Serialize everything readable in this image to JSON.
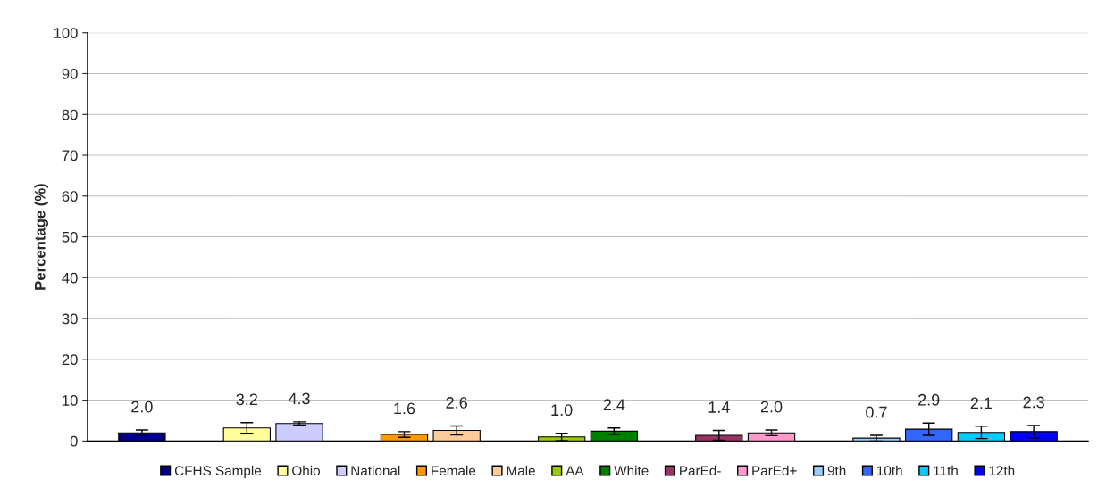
{
  "chart_data": {
    "type": "bar",
    "ylabel": "Percentage (%)",
    "ylim": [
      0,
      100
    ],
    "yticks": [
      0,
      10,
      20,
      30,
      40,
      50,
      60,
      70,
      80,
      90,
      100
    ],
    "grid": "y",
    "legend": "bottom",
    "categories": [
      null,
      null,
      null,
      null,
      null,
      null,
      null,
      null,
      null,
      null,
      null,
      null,
      null,
      null,
      null,
      null,
      null,
      null
    ],
    "series": [
      {
        "name": "CFHS Sample",
        "color": "#000080",
        "values": [
          2.0,
          null,
          null,
          null,
          null,
          null,
          null,
          null,
          null,
          null,
          null,
          null,
          null,
          null,
          null,
          null,
          null,
          null
        ],
        "errors": [
          0.7,
          null,
          null,
          null,
          null,
          null,
          null,
          null,
          null,
          null,
          null,
          null,
          null,
          null,
          null,
          null,
          null,
          null
        ],
        "value_labels": [
          "2.0",
          null,
          null,
          null,
          null,
          null,
          null,
          null,
          null,
          null,
          null,
          null,
          null,
          null,
          null,
          null,
          null,
          null
        ]
      },
      {
        "name": "Ohio",
        "color": "#ffff99",
        "values": [
          null,
          null,
          3.2,
          null,
          null,
          null,
          null,
          null,
          null,
          null,
          null,
          null,
          null,
          null,
          null,
          null,
          null,
          null
        ],
        "errors": [
          null,
          null,
          1.3,
          null,
          null,
          null,
          null,
          null,
          null,
          null,
          null,
          null,
          null,
          null,
          null,
          null,
          null,
          null
        ],
        "value_labels": [
          null,
          null,
          "3.2",
          null,
          null,
          null,
          null,
          null,
          null,
          null,
          null,
          null,
          null,
          null,
          null,
          null,
          null,
          null
        ]
      },
      {
        "name": "National",
        "color": "#ccccff",
        "values": [
          null,
          null,
          null,
          4.3,
          null,
          null,
          null,
          null,
          null,
          null,
          null,
          null,
          null,
          null,
          null,
          null,
          null,
          null
        ],
        "errors": [
          null,
          null,
          null,
          0.4,
          null,
          null,
          null,
          null,
          null,
          null,
          null,
          null,
          null,
          null,
          null,
          null,
          null,
          null
        ],
        "value_labels": [
          null,
          null,
          null,
          "4.3",
          null,
          null,
          null,
          null,
          null,
          null,
          null,
          null,
          null,
          null,
          null,
          null,
          null,
          null
        ]
      },
      {
        "name": "Female",
        "color": "#ff9900",
        "values": [
          null,
          null,
          null,
          null,
          null,
          1.6,
          null,
          null,
          null,
          null,
          null,
          null,
          null,
          null,
          null,
          null,
          null,
          null
        ],
        "errors": [
          null,
          null,
          null,
          null,
          null,
          0.7,
          null,
          null,
          null,
          null,
          null,
          null,
          null,
          null,
          null,
          null,
          null,
          null
        ],
        "value_labels": [
          null,
          null,
          null,
          null,
          null,
          "1.6",
          null,
          null,
          null,
          null,
          null,
          null,
          null,
          null,
          null,
          null,
          null,
          null
        ]
      },
      {
        "name": "Male",
        "color": "#ffcc99",
        "values": [
          null,
          null,
          null,
          null,
          null,
          null,
          2.6,
          null,
          null,
          null,
          null,
          null,
          null,
          null,
          null,
          null,
          null,
          null
        ],
        "errors": [
          null,
          null,
          null,
          null,
          null,
          null,
          1.1,
          null,
          null,
          null,
          null,
          null,
          null,
          null,
          null,
          null,
          null,
          null
        ],
        "value_labels": [
          null,
          null,
          null,
          null,
          null,
          null,
          "2.6",
          null,
          null,
          null,
          null,
          null,
          null,
          null,
          null,
          null,
          null,
          null
        ]
      },
      {
        "name": "AA",
        "color": "#99cc00",
        "values": [
          null,
          null,
          null,
          null,
          null,
          null,
          null,
          null,
          1.0,
          null,
          null,
          null,
          null,
          null,
          null,
          null,
          null,
          null
        ],
        "errors": [
          null,
          null,
          null,
          null,
          null,
          null,
          null,
          null,
          0.9,
          null,
          null,
          null,
          null,
          null,
          null,
          null,
          null,
          null
        ],
        "value_labels": [
          null,
          null,
          null,
          null,
          null,
          null,
          null,
          null,
          "1.0",
          null,
          null,
          null,
          null,
          null,
          null,
          null,
          null,
          null
        ]
      },
      {
        "name": "White",
        "color": "#008000",
        "values": [
          null,
          null,
          null,
          null,
          null,
          null,
          null,
          null,
          null,
          2.4,
          null,
          null,
          null,
          null,
          null,
          null,
          null,
          null
        ],
        "errors": [
          null,
          null,
          null,
          null,
          null,
          null,
          null,
          null,
          null,
          0.8,
          null,
          null,
          null,
          null,
          null,
          null,
          null,
          null
        ],
        "value_labels": [
          null,
          null,
          null,
          null,
          null,
          null,
          null,
          null,
          null,
          "2.4",
          null,
          null,
          null,
          null,
          null,
          null,
          null,
          null
        ]
      },
      {
        "name": "ParEd-",
        "color": "#993366",
        "values": [
          null,
          null,
          null,
          null,
          null,
          null,
          null,
          null,
          null,
          null,
          null,
          1.4,
          null,
          null,
          null,
          null,
          null,
          null
        ],
        "errors": [
          null,
          null,
          null,
          null,
          null,
          null,
          null,
          null,
          null,
          null,
          null,
          1.2,
          null,
          null,
          null,
          null,
          null,
          null
        ],
        "value_labels": [
          null,
          null,
          null,
          null,
          null,
          null,
          null,
          null,
          null,
          null,
          null,
          "1.4",
          null,
          null,
          null,
          null,
          null,
          null
        ]
      },
      {
        "name": "ParEd+",
        "color": "#ff99cc",
        "values": [
          null,
          null,
          null,
          null,
          null,
          null,
          null,
          null,
          null,
          null,
          null,
          null,
          2.0,
          null,
          null,
          null,
          null,
          null
        ],
        "errors": [
          null,
          null,
          null,
          null,
          null,
          null,
          null,
          null,
          null,
          null,
          null,
          null,
          0.7,
          null,
          null,
          null,
          null,
          null
        ],
        "value_labels": [
          null,
          null,
          null,
          null,
          null,
          null,
          null,
          null,
          null,
          null,
          null,
          null,
          "2.0",
          null,
          null,
          null,
          null,
          null
        ]
      },
      {
        "name": "9th",
        "color": "#99ccff",
        "values": [
          null,
          null,
          null,
          null,
          null,
          null,
          null,
          null,
          null,
          null,
          null,
          null,
          null,
          null,
          0.7,
          null,
          null,
          null
        ],
        "errors": [
          null,
          null,
          null,
          null,
          null,
          null,
          null,
          null,
          null,
          null,
          null,
          null,
          null,
          null,
          0.7,
          null,
          null,
          null
        ],
        "value_labels": [
          null,
          null,
          null,
          null,
          null,
          null,
          null,
          null,
          null,
          null,
          null,
          null,
          null,
          null,
          "0.7",
          null,
          null,
          null
        ]
      },
      {
        "name": "10th",
        "color": "#3366ff",
        "values": [
          null,
          null,
          null,
          null,
          null,
          null,
          null,
          null,
          null,
          null,
          null,
          null,
          null,
          null,
          null,
          2.9,
          null,
          null
        ],
        "errors": [
          null,
          null,
          null,
          null,
          null,
          null,
          null,
          null,
          null,
          null,
          null,
          null,
          null,
          null,
          null,
          1.5,
          null,
          null
        ],
        "value_labels": [
          null,
          null,
          null,
          null,
          null,
          null,
          null,
          null,
          null,
          null,
          null,
          null,
          null,
          null,
          null,
          "2.9",
          null,
          null
        ]
      },
      {
        "name": "11th",
        "color": "#00ccff",
        "values": [
          null,
          null,
          null,
          null,
          null,
          null,
          null,
          null,
          null,
          null,
          null,
          null,
          null,
          null,
          null,
          null,
          2.1,
          null
        ],
        "errors": [
          null,
          null,
          null,
          null,
          null,
          null,
          null,
          null,
          null,
          null,
          null,
          null,
          null,
          null,
          null,
          null,
          1.5,
          null
        ],
        "value_labels": [
          null,
          null,
          null,
          null,
          null,
          null,
          null,
          null,
          null,
          null,
          null,
          null,
          null,
          null,
          null,
          null,
          "2.1",
          null
        ]
      },
      {
        "name": "12th",
        "color": "#0000ff",
        "values": [
          null,
          null,
          null,
          null,
          null,
          null,
          null,
          null,
          null,
          null,
          null,
          null,
          null,
          null,
          null,
          null,
          null,
          2.3
        ],
        "errors": [
          null,
          null,
          null,
          null,
          null,
          null,
          null,
          null,
          null,
          null,
          null,
          null,
          null,
          null,
          null,
          null,
          null,
          1.5
        ],
        "value_labels": [
          null,
          null,
          null,
          null,
          null,
          null,
          null,
          null,
          null,
          null,
          null,
          null,
          null,
          null,
          null,
          null,
          null,
          "2.3"
        ]
      }
    ]
  }
}
